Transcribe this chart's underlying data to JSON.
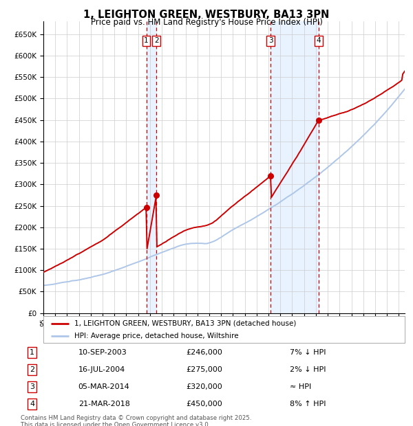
{
  "title": "1, LEIGHTON GREEN, WESTBURY, BA13 3PN",
  "subtitle": "Price paid vs. HM Land Registry's House Price Index (HPI)",
  "hpi_color": "#aec6e8",
  "price_color": "#cc0000",
  "vline_color": "#cc0000",
  "shade_color": "#ddeeff",
  "transaction_dates": [
    2003.69,
    2004.54,
    2014.18,
    2018.22
  ],
  "transaction_prices": [
    246000,
    275000,
    320000,
    450000
  ],
  "transaction_labels": [
    "1",
    "2",
    "3",
    "4"
  ],
  "vline_pairs": [
    [
      2003.69,
      2004.54
    ],
    [
      2014.18,
      2018.22
    ]
  ],
  "legend_line1": "1, LEIGHTON GREEN, WESTBURY, BA13 3PN (detached house)",
  "legend_line2": "HPI: Average price, detached house, Wiltshire",
  "table_data": [
    [
      "1",
      "10-SEP-2003",
      "£246,000",
      "7% ↓ HPI"
    ],
    [
      "2",
      "16-JUL-2004",
      "£275,000",
      "2% ↓ HPI"
    ],
    [
      "3",
      "05-MAR-2014",
      "£320,000",
      "≈ HPI"
    ],
    [
      "4",
      "21-MAR-2018",
      "£450,000",
      "8% ↑ HPI"
    ]
  ],
  "footnote": "Contains HM Land Registry data © Crown copyright and database right 2025.\nThis data is licensed under the Open Government Licence v3.0.",
  "background_color": "#ffffff",
  "grid_color": "#cccccc",
  "xlim_start": 1995.0,
  "xlim_end": 2025.5,
  "ylim": [
    0,
    680000
  ],
  "yticks": [
    0,
    50000,
    100000,
    150000,
    200000,
    250000,
    300000,
    350000,
    400000,
    450000,
    500000,
    550000,
    600000,
    650000
  ],
  "ytick_labels": [
    "£0",
    "£50K",
    "£100K",
    "£150K",
    "£200K",
    "£250K",
    "£300K",
    "£350K",
    "£400K",
    "£450K",
    "£500K",
    "£550K",
    "£600K",
    "£650K"
  ]
}
